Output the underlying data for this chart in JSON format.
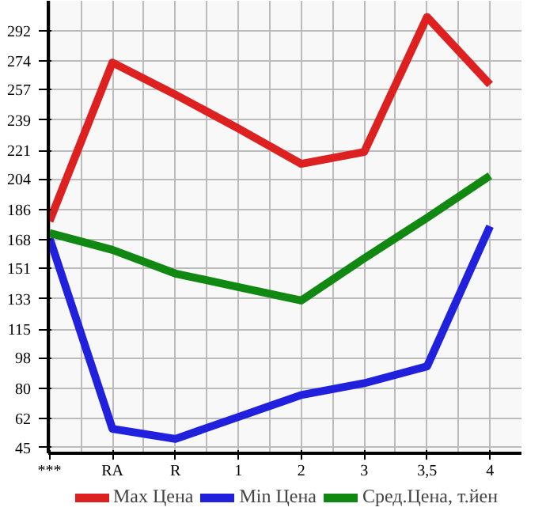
{
  "chart_data": {
    "type": "line",
    "categories": [
      "***",
      "RA",
      "R",
      "1",
      "2",
      "3",
      "3,5",
      "4"
    ],
    "series": [
      {
        "name": "Max Цена",
        "color": "#dd2020",
        "values": [
          179,
          273,
          254,
          234,
          213,
          220,
          300,
          260
        ]
      },
      {
        "name": "Min Цена",
        "color": "#2020dd",
        "values": [
          169,
          56,
          50,
          63,
          76,
          83,
          93,
          176
        ]
      },
      {
        "name": "Сред.Цена, т.йен",
        "color": "#118811",
        "values": [
          172,
          162,
          148,
          140,
          132,
          157,
          181,
          206
        ]
      }
    ],
    "ylim": [
      41.5,
      309.6
    ],
    "yticks": [
      45,
      62,
      80,
      98,
      115,
      133,
      151,
      168,
      186,
      204,
      221,
      239,
      257,
      274,
      292
    ],
    "grid": true,
    "legend": "bottom",
    "line_style": "solid"
  }
}
